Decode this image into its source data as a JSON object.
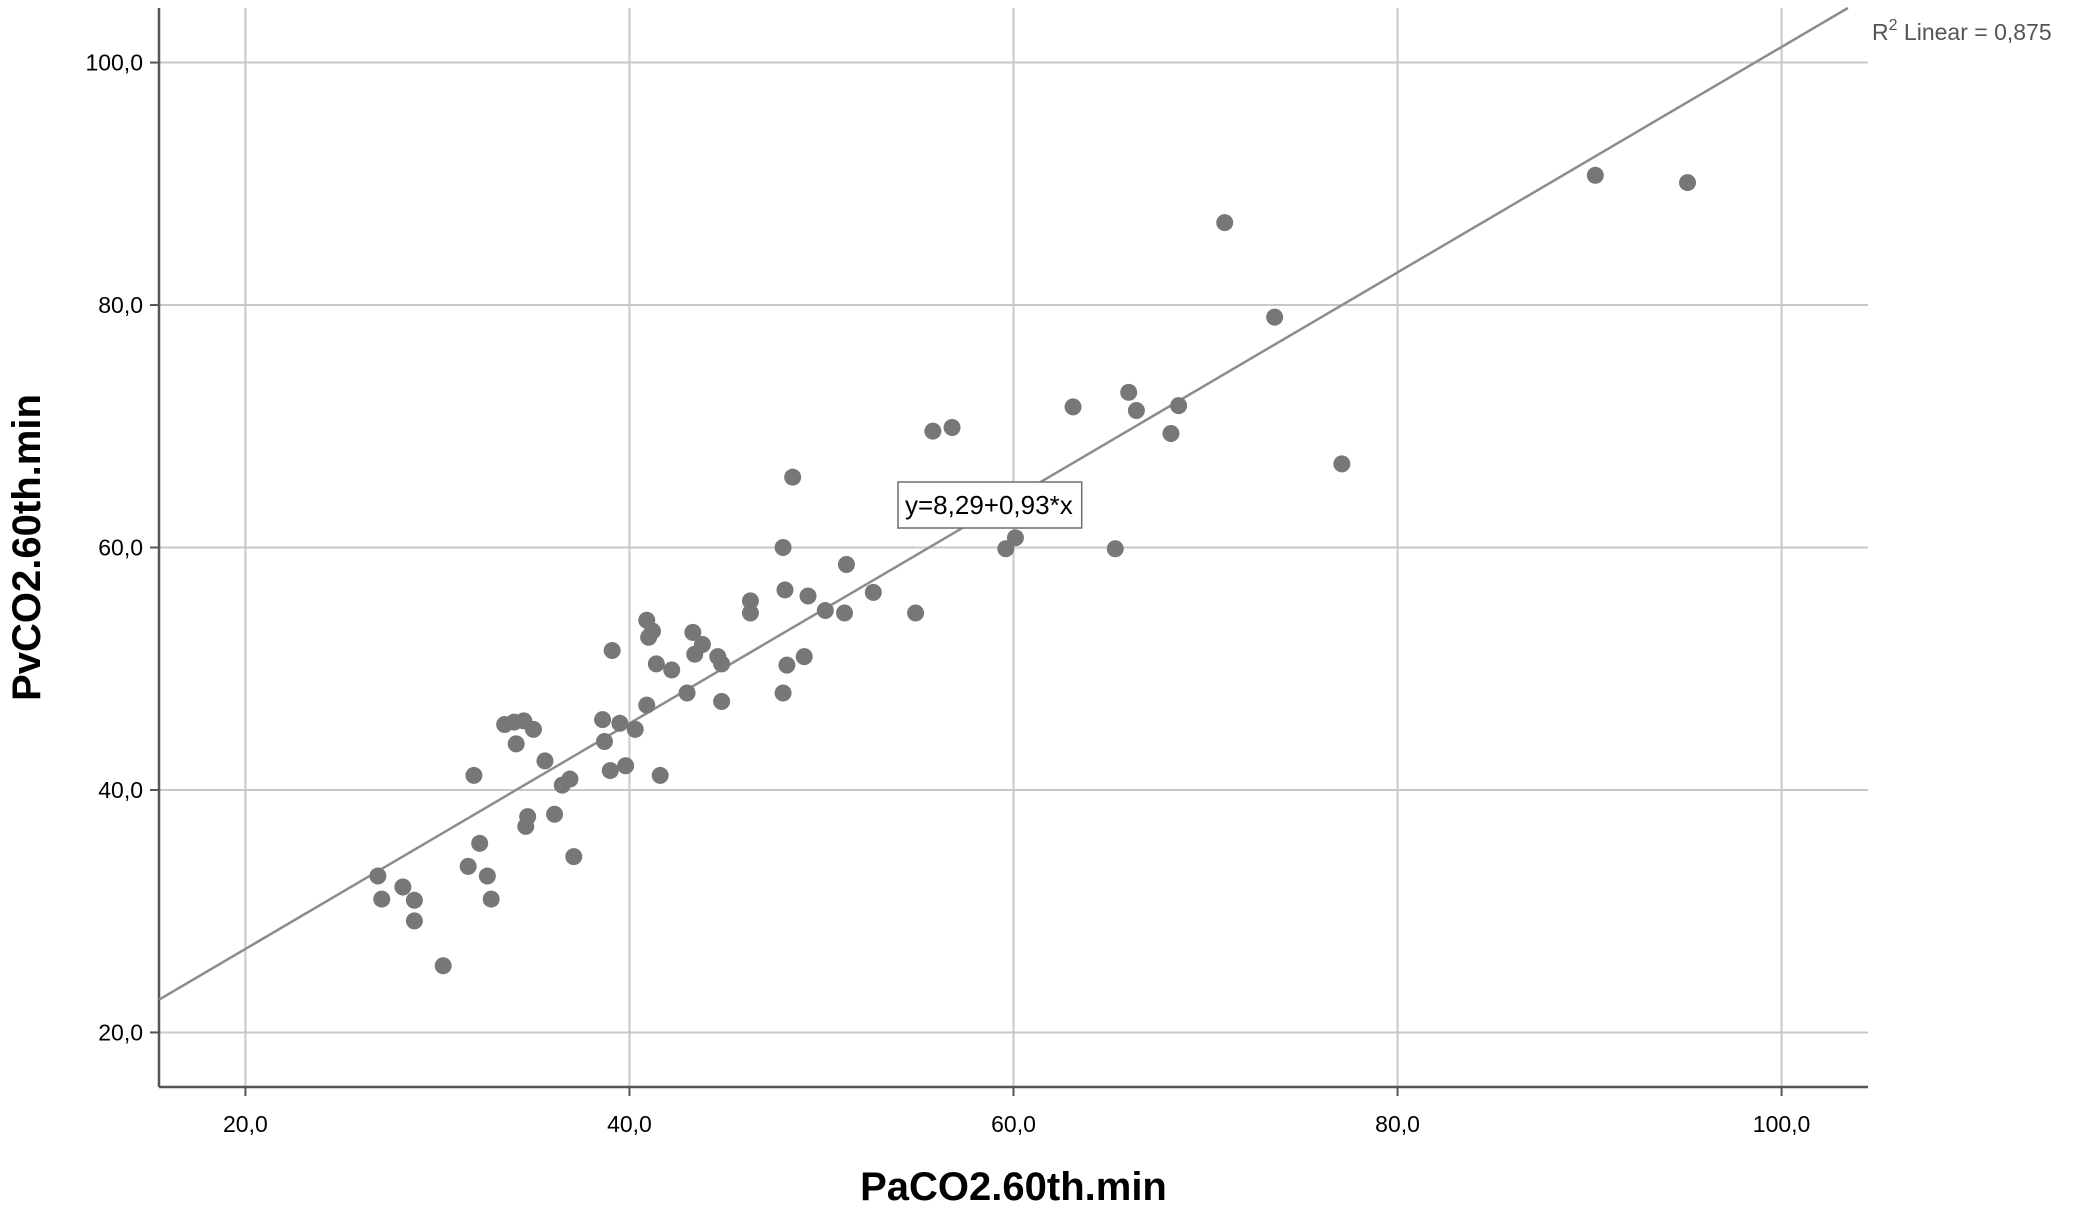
{
  "chart_data": {
    "type": "scatter",
    "title": "",
    "xlabel": "PaCO2.60th.min",
    "ylabel": "PvCO2.60th.min",
    "xlim": [
      15.5,
      104.5
    ],
    "ylim": [
      15.5,
      104.5
    ],
    "x_ticks": [
      20,
      40,
      60,
      80,
      100
    ],
    "y_ticks": [
      20,
      40,
      60,
      80,
      100
    ],
    "x_tick_labels": [
      "20,0",
      "40,0",
      "60,0",
      "80,0",
      "100,0"
    ],
    "y_tick_labels": [
      "20,0",
      "40,0",
      "60,0",
      "80,0",
      "100,0"
    ],
    "grid": true,
    "point_color": "#777777",
    "line_color": "#8c8c8c",
    "grid_color": "#c8c8c8",
    "fit": {
      "intercept": 8.29,
      "slope": 0.93,
      "equation_label": "y=8,29+0,93*x",
      "r2_prefix": "R",
      "r2_sup": "2",
      "r2_text": " Linear = 0,875"
    },
    "points": [
      [
        26.9,
        32.9
      ],
      [
        27.1,
        31.0
      ],
      [
        28.2,
        32.0
      ],
      [
        28.8,
        30.9
      ],
      [
        28.8,
        29.2
      ],
      [
        30.3,
        25.5
      ],
      [
        31.6,
        33.7
      ],
      [
        31.9,
        41.2
      ],
      [
        32.2,
        35.6
      ],
      [
        32.6,
        32.9
      ],
      [
        32.8,
        31.0
      ],
      [
        33.5,
        45.4
      ],
      [
        34.0,
        45.6
      ],
      [
        34.1,
        43.8
      ],
      [
        34.5,
        45.7
      ],
      [
        34.6,
        37.0
      ],
      [
        34.7,
        37.8
      ],
      [
        35.0,
        45.0
      ],
      [
        35.6,
        42.4
      ],
      [
        36.1,
        38.0
      ],
      [
        36.5,
        40.4
      ],
      [
        36.9,
        40.9
      ],
      [
        37.1,
        34.5
      ],
      [
        38.6,
        45.8
      ],
      [
        38.7,
        44.0
      ],
      [
        39.0,
        41.6
      ],
      [
        39.1,
        51.5
      ],
      [
        39.5,
        45.5
      ],
      [
        39.8,
        42.0
      ],
      [
        40.3,
        45.0
      ],
      [
        40.9,
        54.0
      ],
      [
        40.9,
        47.0
      ],
      [
        41.0,
        52.6
      ],
      [
        41.2,
        53.1
      ],
      [
        41.4,
        50.4
      ],
      [
        41.6,
        41.2
      ],
      [
        42.2,
        49.9
      ],
      [
        43.0,
        48.0
      ],
      [
        43.3,
        53.0
      ],
      [
        43.4,
        51.2
      ],
      [
        43.8,
        52.0
      ],
      [
        44.6,
        51.0
      ],
      [
        44.8,
        50.4
      ],
      [
        44.8,
        47.3
      ],
      [
        46.3,
        55.6
      ],
      [
        46.3,
        54.6
      ],
      [
        48.0,
        60.0
      ],
      [
        48.0,
        48.0
      ],
      [
        48.1,
        56.5
      ],
      [
        48.2,
        50.3
      ],
      [
        48.5,
        65.8
      ],
      [
        49.1,
        51.0
      ],
      [
        49.3,
        56.0
      ],
      [
        50.2,
        54.8
      ],
      [
        51.2,
        54.6
      ],
      [
        51.3,
        58.6
      ],
      [
        52.7,
        56.3
      ],
      [
        54.9,
        54.6
      ],
      [
        55.8,
        69.6
      ],
      [
        56.8,
        69.9
      ],
      [
        59.6,
        59.9
      ],
      [
        60.1,
        60.8
      ],
      [
        63.1,
        71.6
      ],
      [
        65.3,
        59.9
      ],
      [
        66.0,
        72.8
      ],
      [
        66.4,
        71.3
      ],
      [
        68.2,
        69.4
      ],
      [
        68.6,
        71.7
      ],
      [
        71.0,
        86.8
      ],
      [
        73.6,
        79.0
      ],
      [
        77.1,
        66.9
      ],
      [
        90.3,
        90.7
      ],
      [
        95.1,
        90.1
      ]
    ]
  }
}
